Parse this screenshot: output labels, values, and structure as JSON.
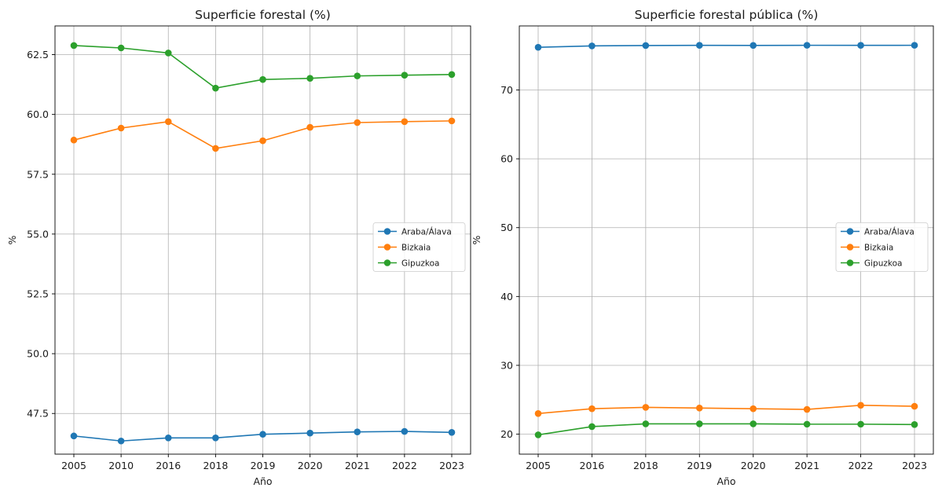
{
  "chart_data": [
    {
      "type": "line",
      "title": "Superficie forestal (%)",
      "xlabel": "Año",
      "ylabel": "%",
      "categories": [
        "2005",
        "2010",
        "2016",
        "2018",
        "2019",
        "2020",
        "2021",
        "2022",
        "2023"
      ],
      "ylim": [
        45.8,
        63.7
      ],
      "yticks": [
        "47.5",
        "50.0",
        "52.5",
        "55.0",
        "57.5",
        "60.0",
        "62.5"
      ],
      "grid": true,
      "legend_position": "center-right",
      "series": [
        {
          "name": "Araba/Álava",
          "color": "#1f77b4",
          "values": [
            46.56,
            46.35,
            46.48,
            46.48,
            46.63,
            46.68,
            46.73,
            46.75,
            46.71
          ]
        },
        {
          "name": "Bizkaia",
          "color": "#ff7f0e",
          "values": [
            58.93,
            59.43,
            59.7,
            58.58,
            58.9,
            59.46,
            59.66,
            59.7,
            59.73
          ]
        },
        {
          "name": "Gipuzkoa",
          "color": "#2ca02c",
          "values": [
            62.88,
            62.78,
            62.57,
            61.1,
            61.46,
            61.51,
            61.61,
            61.64,
            61.67
          ]
        }
      ]
    },
    {
      "type": "line",
      "title": "Superficie forestal pública (%)",
      "xlabel": "Año",
      "ylabel": "%",
      "categories": [
        "2005",
        "2016",
        "2018",
        "2019",
        "2020",
        "2021",
        "2022",
        "2023"
      ],
      "ylim": [
        17.1,
        79.3
      ],
      "yticks": [
        "20",
        "30",
        "40",
        "50",
        "60",
        "70"
      ],
      "grid": true,
      "legend_position": "center-right",
      "series": [
        {
          "name": "Araba/Álava",
          "color": "#1f77b4",
          "values": [
            76.2,
            76.4,
            76.45,
            76.48,
            76.47,
            76.49,
            76.48,
            76.49
          ]
        },
        {
          "name": "Bizkaia",
          "color": "#ff7f0e",
          "values": [
            23.0,
            23.7,
            23.9,
            23.8,
            23.7,
            23.6,
            24.2,
            24.05
          ]
        },
        {
          "name": "Gipuzkoa",
          "color": "#2ca02c",
          "values": [
            19.9,
            21.1,
            21.5,
            21.5,
            21.5,
            21.45,
            21.45,
            21.4
          ]
        }
      ]
    }
  ]
}
